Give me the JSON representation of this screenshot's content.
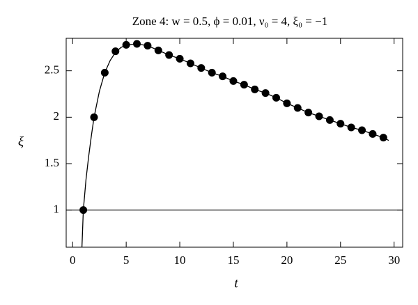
{
  "chart_data": {
    "type": "line",
    "title": "Zone 4: w = 0.5, ϕ = 0.01, ν₀ = 4, ξ₀ = −1",
    "xlabel": "t",
    "ylabel": "ξ",
    "xlim": [
      -0.6,
      30.8
    ],
    "ylim": [
      0.6,
      2.85
    ],
    "xticks": [
      0,
      5,
      10,
      15,
      20,
      25,
      30
    ],
    "yticks": [
      1,
      1.5,
      2,
      2.5
    ],
    "hline": 1,
    "series": [
      {
        "type": "line",
        "color": "#000000",
        "x": [
          0.87,
          1,
          1.25,
          1.5,
          1.75,
          2,
          2.5,
          3,
          3.5,
          4,
          4.5,
          5,
          6,
          7,
          8,
          9,
          10,
          11,
          12,
          13,
          14,
          15,
          16,
          17,
          18,
          19,
          20,
          21,
          22,
          23,
          24,
          25,
          26,
          27,
          28,
          29,
          29.5
        ],
        "values": [
          0.6,
          1.0,
          1.33,
          1.58,
          1.8,
          2.0,
          2.28,
          2.48,
          2.61,
          2.7,
          2.75,
          2.78,
          2.79,
          2.77,
          2.72,
          2.67,
          2.63,
          2.58,
          2.53,
          2.48,
          2.44,
          2.39,
          2.35,
          2.3,
          2.26,
          2.21,
          2.15,
          2.1,
          2.05,
          2.01,
          1.97,
          1.93,
          1.89,
          1.86,
          1.82,
          1.78,
          1.75
        ]
      },
      {
        "type": "scatter",
        "color": "#000000",
        "x": [
          1,
          2,
          3,
          4,
          5,
          6,
          7,
          8,
          9,
          10,
          11,
          12,
          13,
          14,
          15,
          16,
          17,
          18,
          19,
          20,
          21,
          22,
          23,
          24,
          25,
          26,
          27,
          28,
          29
        ],
        "values": [
          1.0,
          2.0,
          2.48,
          2.71,
          2.78,
          2.79,
          2.77,
          2.72,
          2.67,
          2.63,
          2.58,
          2.53,
          2.48,
          2.44,
          2.39,
          2.35,
          2.3,
          2.26,
          2.21,
          2.15,
          2.1,
          2.05,
          2.01,
          1.97,
          1.93,
          1.89,
          1.86,
          1.82,
          1.78
        ]
      }
    ]
  }
}
